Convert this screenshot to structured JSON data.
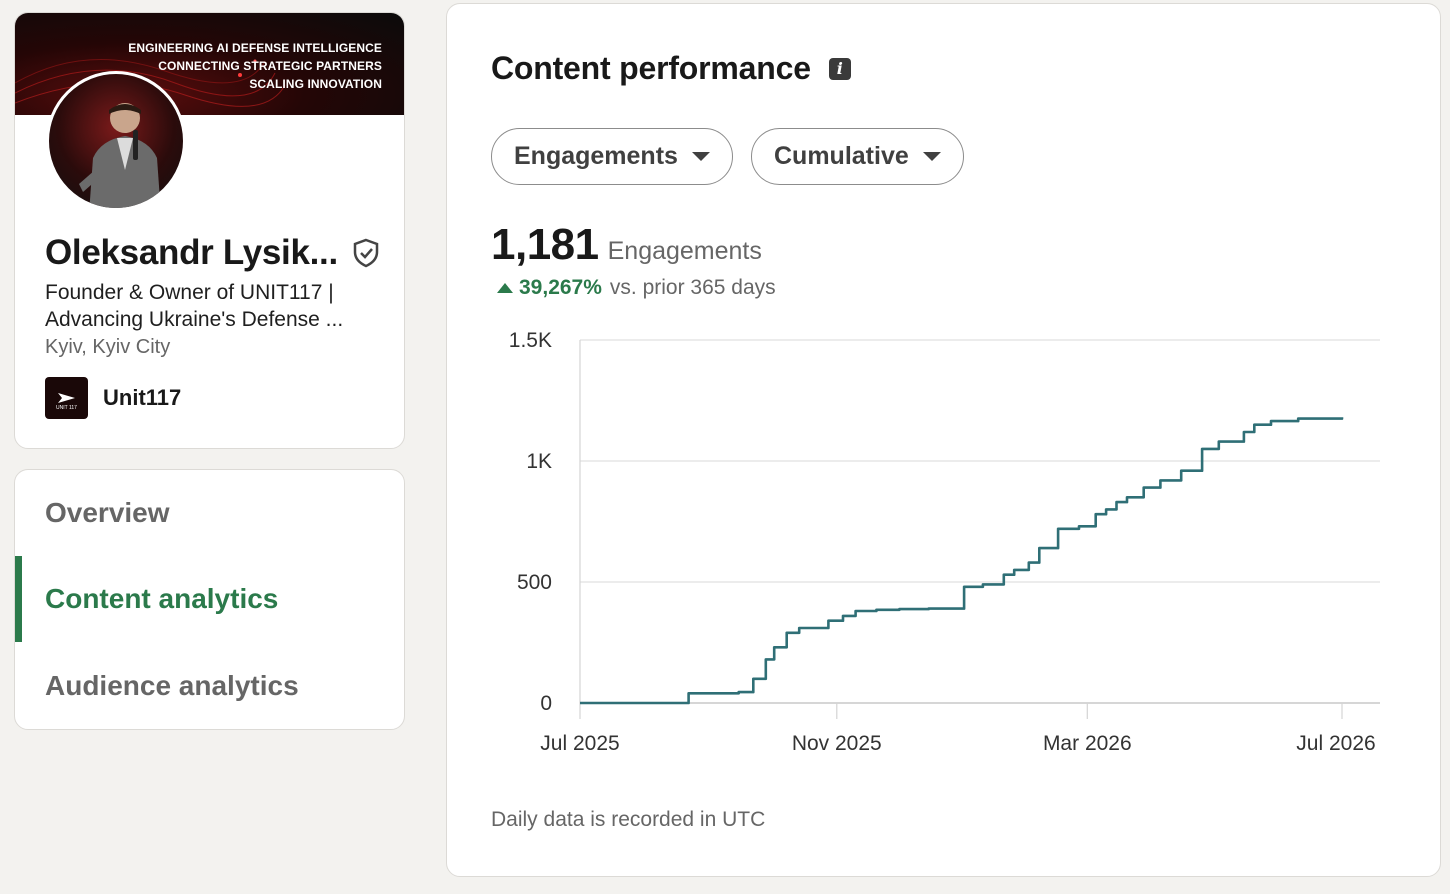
{
  "profile": {
    "banner_lines": [
      "ENGINEERING AI DEFENSE INTELLIGENCE",
      "CONNECTING STRATEGIC PARTNERS",
      "SCALING INNOVATION"
    ],
    "name": "Oleksandr Lysik...",
    "headline_line1": "Founder & Owner of UNIT117 |",
    "headline_line2": "Advancing Ukraine's Defense ...",
    "location": "Kyiv, Kyiv City",
    "company": "Unit117",
    "company_logo_text": "UNIT 117"
  },
  "nav": {
    "items": [
      {
        "label": "Overview",
        "active": false
      },
      {
        "label": "Content analytics",
        "active": true
      },
      {
        "label": "Audience analytics",
        "active": false
      }
    ]
  },
  "main": {
    "title": "Content performance",
    "info_icon": "i",
    "metric_dropdown": "Engagements",
    "mode_dropdown": "Cumulative",
    "metric_value": "1,181",
    "metric_label": "Engagements",
    "change_pct": "39,267%",
    "change_label": "vs. prior 365 days",
    "footnote": "Daily data is recorded in UTC"
  },
  "colors": {
    "accent": "#2b7a4b",
    "line": "#2f6f76",
    "grid": "#e0e0e0"
  },
  "chart_data": {
    "type": "line",
    "title": "",
    "xlabel": "",
    "ylabel": "",
    "x_ticks": [
      "Jul 2025",
      "Nov 2025",
      "Mar 2026",
      "Jul 2026"
    ],
    "y_ticks": [
      "0",
      "500",
      "1K",
      "1.5K"
    ],
    "ylim": [
      0,
      1500
    ],
    "xlim": [
      "2025-07-01",
      "2026-07-01"
    ],
    "grid": true,
    "series": [
      {
        "x": [
          "2025-07-01",
          "2025-08-20",
          "2025-08-22",
          "2025-09-15",
          "2025-09-22",
          "2025-09-28",
          "2025-10-02",
          "2025-10-08",
          "2025-10-14",
          "2025-10-28",
          "2025-11-04",
          "2025-11-10",
          "2025-11-20",
          "2025-12-01",
          "2025-12-15",
          "2025-12-25",
          "2026-01-01",
          "2026-01-10",
          "2026-01-20",
          "2026-01-25",
          "2026-02-01",
          "2026-02-06",
          "2026-02-15",
          "2026-02-25",
          "2026-03-05",
          "2026-03-10",
          "2026-03-15",
          "2026-03-20",
          "2026-03-28",
          "2026-04-05",
          "2026-04-15",
          "2026-04-25",
          "2026-05-03",
          "2026-05-15",
          "2026-05-20",
          "2026-05-28",
          "2026-06-10",
          "2026-07-01"
        ],
        "y": [
          0,
          0,
          40,
          45,
          100,
          180,
          230,
          290,
          310,
          340,
          360,
          380,
          385,
          388,
          390,
          390,
          480,
          490,
          530,
          550,
          580,
          640,
          720,
          730,
          780,
          800,
          830,
          850,
          890,
          920,
          960,
          1050,
          1080,
          1120,
          1150,
          1165,
          1175,
          1181
        ]
      }
    ]
  }
}
